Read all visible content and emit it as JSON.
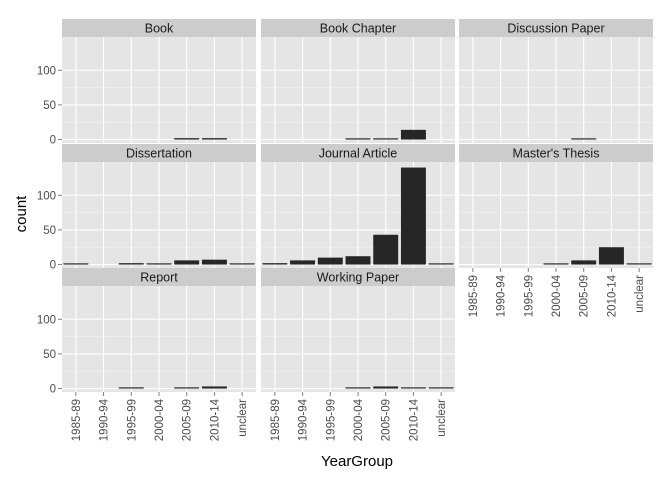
{
  "chart_data": {
    "type": "bar",
    "facet_layout": "3 columns x 3 rows",
    "xlabel": "YearGroup",
    "ylabel": "count",
    "x_categories": [
      "1985-89",
      "1990-94",
      "1995-99",
      "2000-04",
      "2005-09",
      "2010-14",
      "unclear"
    ],
    "y_ticks": [
      0,
      50,
      100
    ],
    "ylim": [
      -5,
      148
    ],
    "grid": true,
    "panel_background": "#e5e5e5",
    "strip_background": "#cccccc",
    "bar_color": "#262626",
    "facets": [
      {
        "name": "Book",
        "values": [
          0,
          0,
          0,
          0,
          2,
          2,
          0
        ]
      },
      {
        "name": "Book Chapter",
        "values": [
          0,
          0,
          0,
          1,
          1,
          14,
          0
        ]
      },
      {
        "name": "Discussion Paper",
        "values": [
          0,
          0,
          0,
          0,
          1,
          0,
          0
        ]
      },
      {
        "name": "Dissertation",
        "values": [
          1,
          0,
          2,
          1,
          6,
          7,
          1
        ]
      },
      {
        "name": "Journal Article",
        "values": [
          2,
          6,
          10,
          12,
          43,
          140,
          1
        ]
      },
      {
        "name": "Master's Thesis",
        "values": [
          0,
          0,
          0,
          1,
          6,
          25,
          1
        ]
      },
      {
        "name": "Report",
        "values": [
          0,
          0,
          1,
          0,
          1,
          3,
          0
        ]
      },
      {
        "name": "Working Paper",
        "values": [
          0,
          0,
          0,
          1,
          3,
          1,
          1
        ]
      }
    ]
  }
}
